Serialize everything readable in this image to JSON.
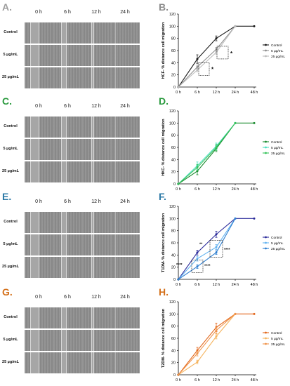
{
  "panels": [
    {
      "letter": "A.",
      "color": "#9e9e9e"
    },
    {
      "letter": "B.",
      "color": "#8c8c8c"
    },
    {
      "letter": "C.",
      "color": "#2a9a3e"
    },
    {
      "letter": "D.",
      "color": "#2a9a3e"
    },
    {
      "letter": "E.",
      "color": "#2b78a6"
    },
    {
      "letter": "F.",
      "color": "#2b78a6"
    },
    {
      "letter": "G.",
      "color": "#d4711c"
    },
    {
      "letter": "H.",
      "color": "#d4711c"
    }
  ],
  "micrograph": {
    "columns": [
      "0 h",
      "6 h",
      "12 h",
      "24 h"
    ],
    "rows": [
      "Control",
      "5 µg/mL",
      "25 µg/mL"
    ]
  },
  "chart_data": [
    {
      "panel": "B",
      "type": "line",
      "x": [
        "0 h",
        "6 h",
        "12 h",
        "24 h",
        "48 h"
      ],
      "ylabel": "HCF- % distance cell migration",
      "ylim": [
        0,
        120
      ],
      "yticks": [
        0,
        20,
        40,
        60,
        80,
        100,
        120
      ],
      "series": [
        {
          "name": "Control",
          "color": "#1a1a1a",
          "values": [
            0,
            46,
            80,
            100,
            100
          ],
          "err": [
            0,
            7,
            4,
            0,
            0
          ]
        },
        {
          "name": "5 µg/mL",
          "color": "#8f8f8f",
          "values": [
            0,
            33,
            62,
            100,
            null
          ],
          "err": [
            0,
            3,
            3,
            0,
            0
          ]
        },
        {
          "name": "25 µg/mL",
          "color": "#bdbdbd",
          "values": [
            0,
            28,
            57,
            100,
            null
          ],
          "err": [
            0,
            3,
            3,
            0,
            0
          ]
        }
      ],
      "annotations": [
        "*",
        "*"
      ],
      "legend_position": "right"
    },
    {
      "panel": "D",
      "type": "line",
      "x": [
        "0 h",
        "6 h",
        "12 h",
        "24 h",
        "48 h"
      ],
      "ylabel": "HKC- % distance cell migration",
      "ylim": [
        0,
        120
      ],
      "yticks": [
        0,
        20,
        40,
        60,
        80,
        100,
        120
      ],
      "series": [
        {
          "name": "Control",
          "color": "#1a8a2e",
          "values": [
            0,
            21,
            58,
            100,
            100
          ],
          "err": [
            0,
            6,
            5,
            0,
            0
          ]
        },
        {
          "name": "5 µg/mL",
          "color": "#49e0bf",
          "values": [
            0,
            30,
            62,
            100,
            null
          ],
          "err": [
            0,
            6,
            5,
            0,
            0
          ]
        },
        {
          "name": "25 µg/mL",
          "color": "#35c25a",
          "values": [
            0,
            27,
            60,
            100,
            null
          ],
          "err": [
            0,
            5,
            5,
            0,
            0
          ]
        }
      ],
      "annotations": [],
      "legend_position": "right"
    },
    {
      "panel": "F",
      "type": "line",
      "x": [
        "0 h",
        "6 h",
        "12 h",
        "24 h",
        "48 h"
      ],
      "ylabel": "T1DM- % distance cell migration",
      "ylim": [
        0,
        120
      ],
      "yticks": [
        0,
        20,
        40,
        60,
        80,
        100,
        120
      ],
      "series": [
        {
          "name": "Control",
          "color": "#2a2a9a",
          "values": [
            0,
            44,
            74,
            100,
            100
          ],
          "err": [
            0,
            4,
            5,
            0,
            0
          ]
        },
        {
          "name": "5 µg/mL",
          "color": "#63b3f0",
          "values": [
            0,
            34,
            53,
            100,
            null
          ],
          "err": [
            0,
            4,
            4,
            0,
            0
          ]
        },
        {
          "name": "25 µg/mL",
          "color": "#2f7fd0",
          "values": [
            0,
            21,
            44,
            100,
            null
          ],
          "err": [
            0,
            3,
            3,
            0,
            0
          ]
        }
      ],
      "annotations": [
        "****",
        "**",
        "****",
        "****"
      ],
      "legend_position": "right"
    },
    {
      "panel": "H",
      "type": "line",
      "x": [
        "0 h",
        "6 h",
        "12 h",
        "24 h",
        "48 h"
      ],
      "ylabel": "T2DM- % distance cell migration",
      "ylim": [
        0,
        120
      ],
      "yticks": [
        0,
        20,
        40,
        60,
        80,
        100,
        120
      ],
      "series": [
        {
          "name": "Control",
          "color": "#e2661a",
          "values": [
            0,
            40,
            78,
            100,
            100
          ],
          "err": [
            0,
            5,
            7,
            0,
            0
          ]
        },
        {
          "name": "5 µg/mL",
          "color": "#f5b45f",
          "values": [
            0,
            21,
            63,
            100,
            null
          ],
          "err": [
            0,
            3,
            4,
            0,
            0
          ]
        },
        {
          "name": "25 µg/mL",
          "color": "#f0934a",
          "values": [
            0,
            35,
            73,
            100,
            null
          ],
          "err": [
            0,
            4,
            5,
            0,
            0
          ]
        }
      ],
      "annotations": [],
      "legend_position": "right"
    }
  ]
}
